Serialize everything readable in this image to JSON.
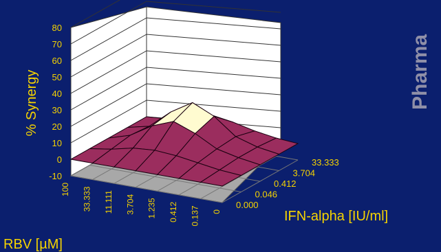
{
  "side_label": "Pharma",
  "chart_data": {
    "type": "surface",
    "title": "",
    "zlabel": "% Synergy",
    "xlabel": "RBV  [µM]",
    "ylabel": "IFN-alpha [IU/ml]",
    "zlim": [
      -10,
      80
    ],
    "z_ticks": [
      "80",
      "70",
      "60",
      "50",
      "40",
      "30",
      "20",
      "10",
      "0",
      "-10"
    ],
    "rbv_ticks": [
      "100",
      "33.333",
      "11.111",
      "3.704",
      "1.235",
      "0.412",
      "0.137",
      "0"
    ],
    "ifn_ticks": [
      "33.333",
      "3.704",
      "0.412",
      "0.046",
      "0.000"
    ],
    "surface_color": "#9b2d5e",
    "peak_color": "#fffbd0",
    "text_color": "#f5d300",
    "values": [
      [
        0,
        0,
        0,
        0,
        0,
        0,
        0,
        0
      ],
      [
        0,
        2,
        5,
        6,
        5,
        3,
        1,
        0
      ],
      [
        0,
        4,
        12,
        17,
        12,
        5,
        2,
        0
      ],
      [
        0,
        3,
        14,
        22,
        16,
        6,
        2,
        0
      ],
      [
        0,
        1,
        5,
        8,
        6,
        3,
        1,
        0
      ]
    ]
  }
}
